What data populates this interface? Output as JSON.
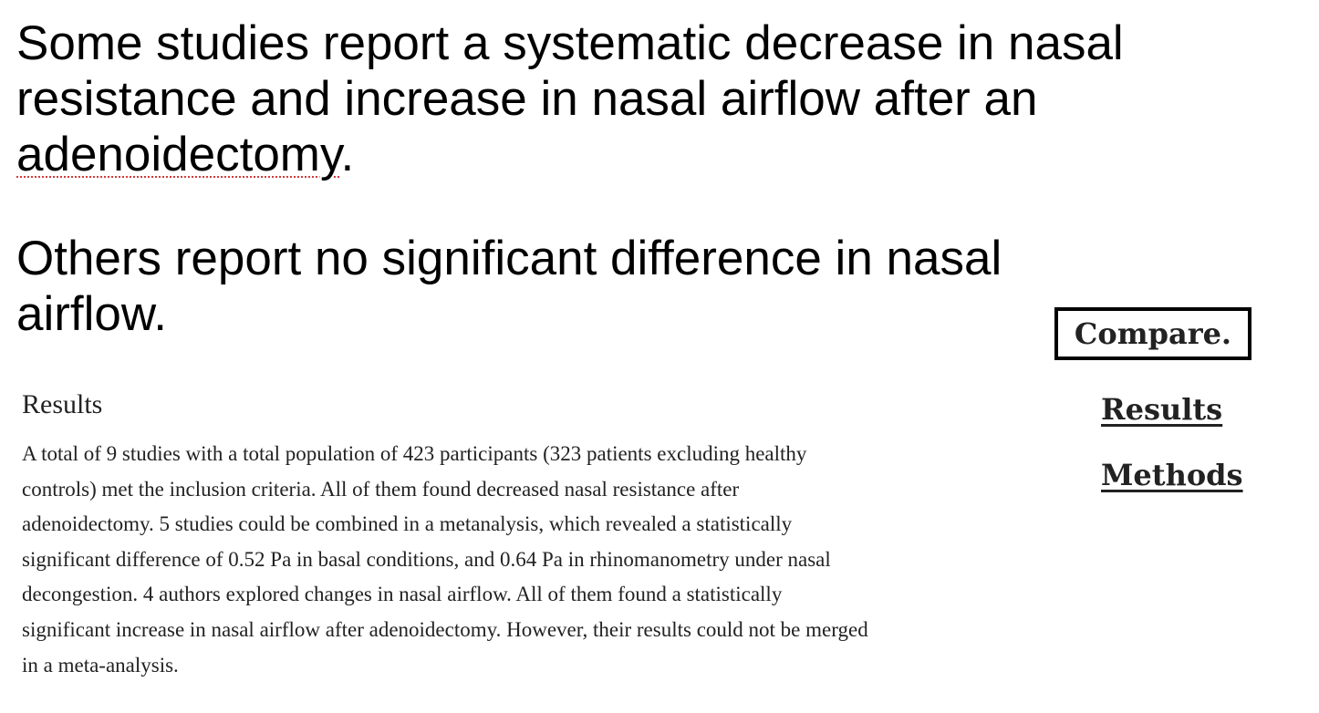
{
  "claims": {
    "first": {
      "text_before": "Some studies report a systematic decrease in nasal resistance and increase in nasal airflow after an ",
      "highlighted_term": "adenoidectomy",
      "text_after": "."
    },
    "second": "Others report no significant difference in nasal airflow."
  },
  "sidebar": {
    "compare_label": "Compare.",
    "results_link": "Results",
    "methods_link": "Methods"
  },
  "results_section": {
    "heading": "Results",
    "body": "A total of 9 studies with a total population of 423 participants (323 patients excluding healthy controls) met the inclusion criteria. All of them found decreased nasal resistance after adenoidectomy. 5 studies could be combined in a metanalysis, which revealed a statistically significant difference of 0.52 Pa in basal conditions, and 0.64 Pa in rhinomanometry under nasal decongestion. 4 authors explored changes in nasal airflow. All of them found a statistically significant increase in nasal airflow after adenoidectomy. However, their results could not be merged in a meta-analysis."
  },
  "colors": {
    "text": "#000000",
    "body_text": "#222222",
    "spellcheck_underline": "#d23a3a"
  }
}
